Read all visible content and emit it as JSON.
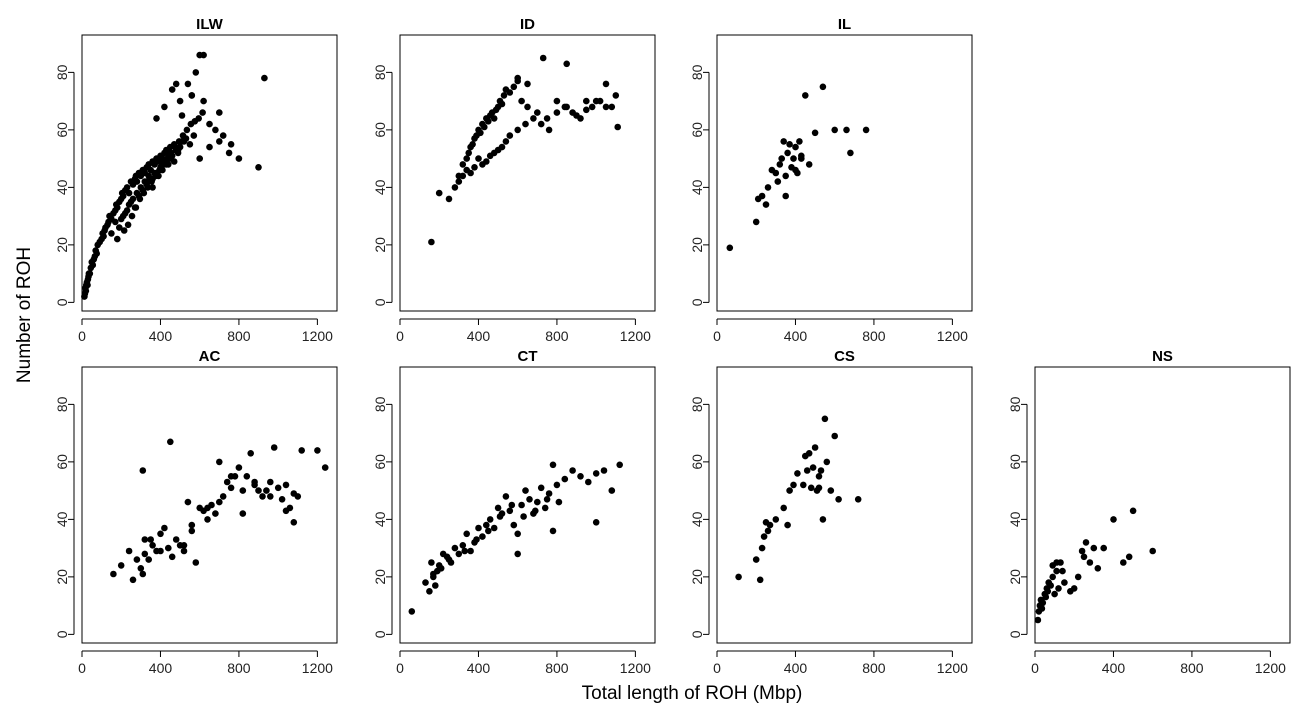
{
  "figure": {
    "xlabel": "Total length of ROH (Mbp)",
    "ylabel": "Number of ROH"
  },
  "chart_data": [
    {
      "type": "scatter",
      "title": "ILW",
      "xlim": [
        0,
        1300
      ],
      "ylim": [
        -3,
        93
      ],
      "xticks": [
        0,
        400,
        800,
        1200
      ],
      "yticks": [
        0,
        20,
        40,
        60,
        80
      ],
      "x": [
        12,
        15,
        18,
        20,
        22,
        25,
        28,
        30,
        33,
        35,
        40,
        45,
        50,
        55,
        60,
        65,
        70,
        75,
        80,
        90,
        100,
        105,
        110,
        115,
        120,
        130,
        135,
        140,
        150,
        160,
        170,
        175,
        180,
        190,
        200,
        205,
        210,
        220,
        230,
        240,
        250,
        260,
        270,
        275,
        280,
        290,
        300,
        310,
        320,
        330,
        340,
        350,
        360,
        370,
        380,
        390,
        400,
        410,
        420,
        430,
        440,
        450,
        470,
        490,
        510,
        530,
        550,
        570,
        600,
        650,
        700,
        750,
        800,
        900,
        930,
        560,
        580,
        600,
        620,
        540,
        150,
        170,
        190,
        210,
        230,
        250,
        270,
        290,
        310,
        330,
        350,
        370,
        390,
        410,
        430,
        450,
        470,
        490,
        200,
        220,
        240,
        260,
        280,
        300,
        320,
        340,
        360,
        380,
        400,
        420,
        440,
        460,
        480,
        500,
        520,
        180,
        215,
        235,
        255,
        275,
        295,
        315,
        335,
        355,
        375,
        395,
        415,
        435,
        455,
        475,
        495,
        515,
        535,
        555,
        575,
        595,
        615,
        650,
        680,
        720,
        760,
        380,
        420,
        500,
        560,
        620,
        700,
        460,
        480,
        510,
        330,
        360
      ],
      "y": [
        2,
        3,
        5,
        4,
        6,
        7,
        6,
        8,
        9,
        10,
        10,
        12,
        14,
        13,
        15,
        16,
        18,
        17,
        20,
        21,
        22,
        24,
        23,
        25,
        26,
        27,
        28,
        30,
        29,
        31,
        32,
        34,
        33,
        35,
        36,
        38,
        37,
        39,
        40,
        38,
        42,
        41,
        43,
        44,
        42,
        45,
        44,
        46,
        45,
        47,
        48,
        46,
        49,
        48,
        50,
        49,
        51,
        50,
        52,
        53,
        52,
        54,
        55,
        53,
        56,
        57,
        55,
        58,
        50,
        54,
        56,
        52,
        50,
        47,
        78,
        72,
        80,
        86,
        86,
        76,
        24,
        28,
        26,
        30,
        32,
        35,
        33,
        37,
        39,
        41,
        43,
        45,
        44,
        46,
        48,
        50,
        49,
        52,
        29,
        31,
        34,
        36,
        38,
        40,
        42,
        44,
        43,
        45,
        47,
        49,
        48,
        51,
        53,
        54,
        56,
        22,
        25,
        27,
        30,
        33,
        36,
        38,
        40,
        42,
        44,
        46,
        48,
        50,
        52,
        54,
        56,
        58,
        60,
        62,
        63,
        64,
        66,
        62,
        60,
        58,
        55,
        64,
        68,
        70,
        72,
        70,
        66,
        74,
        76,
        65,
        42,
        40
      ]
    },
    {
      "type": "scatter",
      "title": "ID",
      "xlim": [
        0,
        1300
      ],
      "ylim": [
        -3,
        93
      ],
      "xticks": [
        0,
        400,
        800,
        1200
      ],
      "yticks": [
        0,
        20,
        40,
        60,
        80
      ],
      "x": [
        160,
        200,
        250,
        280,
        300,
        320,
        340,
        350,
        360,
        370,
        380,
        390,
        400,
        410,
        420,
        430,
        440,
        450,
        460,
        470,
        480,
        490,
        500,
        510,
        520,
        530,
        540,
        560,
        580,
        600,
        620,
        650,
        700,
        750,
        800,
        850,
        900,
        950,
        1000,
        1050,
        1100,
        1110,
        730,
        850,
        1050,
        950,
        600,
        650,
        400,
        420,
        440,
        460,
        480,
        500,
        520,
        540,
        360,
        380,
        300,
        320,
        340,
        560,
        600,
        640,
        680,
        720,
        760,
        800,
        840,
        880,
        920,
        980,
        1020,
        1080
      ],
      "y": [
        21,
        38,
        36,
        40,
        44,
        48,
        50,
        52,
        54,
        55,
        57,
        58,
        60,
        59,
        62,
        61,
        64,
        63,
        65,
        66,
        64,
        67,
        68,
        70,
        69,
        72,
        74,
        73,
        75,
        77,
        70,
        68,
        66,
        64,
        70,
        68,
        65,
        67,
        70,
        68,
        72,
        61,
        85,
        83,
        76,
        70,
        78,
        76,
        50,
        48,
        49,
        51,
        52,
        53,
        54,
        56,
        45,
        47,
        42,
        44,
        46,
        58,
        60,
        62,
        64,
        62,
        60,
        66,
        68,
        66,
        64,
        68,
        70,
        68
      ]
    },
    {
      "type": "scatter",
      "title": "IL",
      "xlim": [
        0,
        1300
      ],
      "ylim": [
        -3,
        93
      ],
      "xticks": [
        0,
        400,
        800,
        1200
      ],
      "yticks": [
        0,
        20,
        40,
        60,
        80
      ],
      "x": [
        65,
        200,
        210,
        230,
        250,
        260,
        280,
        300,
        310,
        320,
        330,
        340,
        350,
        360,
        370,
        380,
        390,
        400,
        410,
        420,
        430,
        450,
        470,
        500,
        540,
        600,
        660,
        680,
        760,
        350,
        400,
        430
      ],
      "y": [
        19,
        28,
        36,
        37,
        34,
        40,
        46,
        45,
        42,
        48,
        50,
        56,
        44,
        52,
        55,
        47,
        50,
        54,
        45,
        56,
        51,
        72,
        48,
        59,
        75,
        60,
        60,
        52,
        60,
        37,
        46,
        50
      ]
    },
    {
      "type": "scatter",
      "title": "AC",
      "xlim": [
        0,
        1300
      ],
      "ylim": [
        -3,
        93
      ],
      "xticks": [
        0,
        400,
        800,
        1200
      ],
      "yticks": [
        0,
        20,
        40,
        60,
        80
      ],
      "x": [
        160,
        200,
        240,
        260,
        280,
        300,
        310,
        320,
        340,
        360,
        380,
        400,
        420,
        440,
        460,
        480,
        500,
        520,
        540,
        560,
        580,
        600,
        620,
        640,
        660,
        680,
        700,
        720,
        740,
        760,
        780,
        800,
        820,
        840,
        860,
        880,
        900,
        920,
        940,
        960,
        980,
        1000,
        1020,
        1040,
        1060,
        1080,
        1100,
        1120,
        1200,
        1240,
        450,
        310,
        320,
        350,
        400,
        520,
        560,
        640,
        700,
        760,
        820,
        880,
        960,
        1040,
        1080
      ],
      "y": [
        21,
        24,
        29,
        19,
        26,
        23,
        21,
        33,
        26,
        31,
        29,
        35,
        37,
        30,
        27,
        33,
        31,
        29,
        46,
        36,
        25,
        44,
        43,
        40,
        45,
        42,
        46,
        48,
        53,
        51,
        55,
        58,
        42,
        55,
        63,
        52,
        50,
        48,
        50,
        53,
        65,
        51,
        47,
        43,
        44,
        39,
        48,
        64,
        64,
        58,
        67,
        57,
        28,
        33,
        29,
        31,
        38,
        44,
        60,
        55,
        50,
        53,
        48,
        52,
        49
      ]
    },
    {
      "type": "scatter",
      "title": "CT",
      "xlim": [
        0,
        1300
      ],
      "ylim": [
        -3,
        93
      ],
      "xticks": [
        0,
        400,
        800,
        1200
      ],
      "yticks": [
        0,
        20,
        40,
        60,
        80
      ],
      "x": [
        60,
        130,
        150,
        160,
        170,
        180,
        200,
        220,
        240,
        260,
        280,
        300,
        320,
        340,
        360,
        380,
        400,
        420,
        440,
        460,
        480,
        500,
        520,
        540,
        560,
        580,
        600,
        620,
        640,
        660,
        680,
        700,
        720,
        740,
        760,
        780,
        800,
        840,
        880,
        920,
        960,
        1000,
        1040,
        1080,
        1120,
        780,
        600,
        1000,
        170,
        190,
        210,
        250,
        330,
        390,
        450,
        510,
        570,
        630,
        690,
        750,
        810
      ],
      "y": [
        8,
        18,
        15,
        25,
        20,
        17,
        24,
        28,
        27,
        25,
        30,
        28,
        31,
        35,
        29,
        32,
        37,
        34,
        38,
        40,
        37,
        44,
        42,
        48,
        43,
        38,
        28,
        45,
        50,
        47,
        42,
        46,
        51,
        44,
        49,
        59,
        52,
        54,
        57,
        55,
        53,
        56,
        57,
        50,
        59,
        36,
        35,
        39,
        21,
        22,
        23,
        26,
        29,
        33,
        36,
        41,
        45,
        41,
        43,
        47,
        46
      ]
    },
    {
      "type": "scatter",
      "title": "CS",
      "xlim": [
        0,
        1300
      ],
      "ylim": [
        -3,
        93
      ],
      "xticks": [
        0,
        400,
        800,
        1200
      ],
      "yticks": [
        0,
        20,
        40,
        60,
        80
      ],
      "x": [
        110,
        200,
        220,
        230,
        240,
        250,
        260,
        270,
        300,
        340,
        370,
        390,
        410,
        440,
        460,
        470,
        490,
        500,
        510,
        520,
        530,
        540,
        550,
        560,
        580,
        600,
        620,
        720,
        360,
        480,
        520,
        450
      ],
      "y": [
        20,
        26,
        19,
        30,
        34,
        39,
        36,
        38,
        40,
        44,
        50,
        52,
        56,
        52,
        57,
        63,
        58,
        65,
        50,
        51,
        57,
        40,
        75,
        60,
        50,
        69,
        47,
        47,
        38,
        51,
        55,
        62
      ]
    },
    {
      "type": "scatter",
      "title": "NS",
      "xlim": [
        0,
        1300
      ],
      "ylim": [
        -3,
        93
      ],
      "xticks": [
        0,
        400,
        800,
        1200
      ],
      "yticks": [
        0,
        20,
        40,
        60,
        80
      ],
      "x": [
        15,
        20,
        25,
        30,
        35,
        40,
        50,
        55,
        60,
        65,
        70,
        80,
        90,
        100,
        110,
        120,
        130,
        150,
        180,
        200,
        220,
        240,
        260,
        280,
        300,
        320,
        400,
        450,
        500,
        600,
        90,
        110,
        140,
        250,
        350,
        480
      ],
      "y": [
        5,
        8,
        10,
        12,
        9,
        11,
        14,
        13,
        16,
        15,
        18,
        17,
        20,
        14,
        22,
        16,
        25,
        18,
        15,
        16,
        20,
        29,
        32,
        25,
        30,
        23,
        40,
        25,
        43,
        29,
        24,
        25,
        22,
        27,
        30,
        27
      ]
    }
  ]
}
